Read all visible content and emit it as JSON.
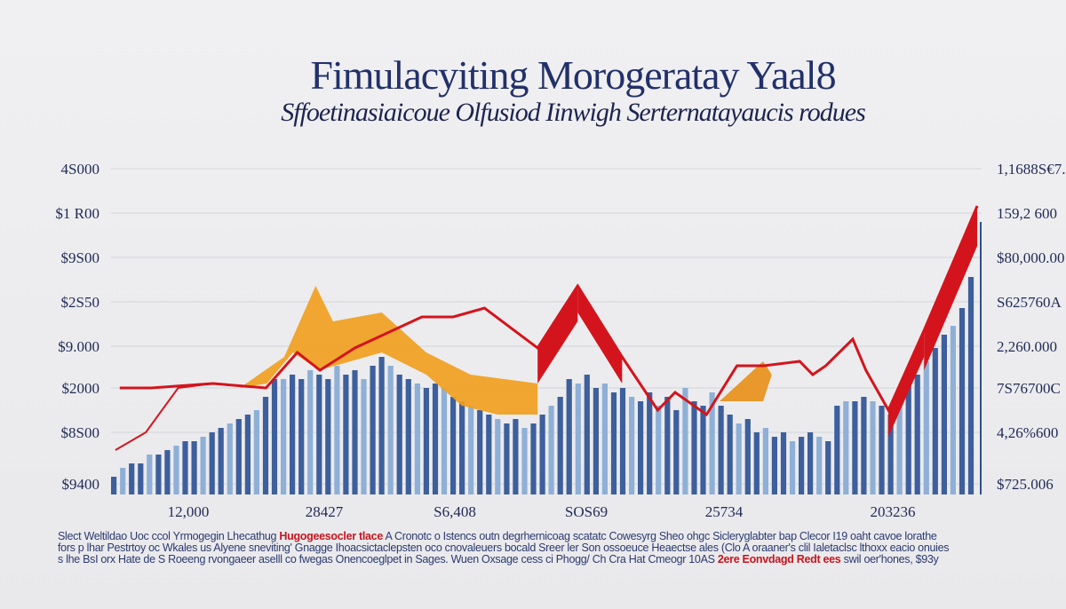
{
  "chart_data": {
    "type": "bar",
    "title": "Fimulacyiting Morogeratay Yaal8",
    "subtitle": "Sffoetinasiaicoue Olfusiod Iinwigh Serternatayaucis rodues",
    "left_ticks": [
      "4S000",
      "$1 R00",
      "$9S00",
      "$2S50",
      "$9.000",
      "$2000",
      "$8S00",
      "$9400"
    ],
    "right_ticks": [
      "1,1688S€7.3",
      "159,2 600",
      "$80,000.00",
      "S625760A",
      "2,260.000",
      "7S76700C",
      "4,26%600",
      "$725.006"
    ],
    "x_ticks": [
      "12,000",
      "28427",
      "S6,408",
      "SOS69",
      "25734",
      "203236"
    ],
    "xlim": [
      0,
      100
    ],
    "ylim": [
      0,
      7.4
    ],
    "grid": true,
    "colors": {
      "bar": "#3d5f9c",
      "bar_light": "#8fb0d6",
      "line": "#d4141c",
      "area": "#f0a020",
      "area_dark": "#e8901a"
    },
    "bars": [
      0.4,
      0.6,
      0.7,
      0.7,
      0.9,
      0.9,
      1.0,
      1.1,
      1.2,
      1.2,
      1.3,
      1.4,
      1.5,
      1.6,
      1.7,
      1.8,
      1.9,
      2.2,
      2.6,
      2.6,
      2.7,
      2.6,
      2.8,
      2.7,
      2.6,
      2.9,
      2.7,
      2.8,
      2.6,
      2.9,
      3.1,
      2.9,
      2.7,
      2.6,
      2.5,
      2.4,
      2.5,
      2.4,
      2.2,
      2.1,
      2.0,
      1.9,
      1.8,
      1.7,
      1.6,
      1.7,
      1.5,
      1.6,
      1.8,
      2.0,
      2.2,
      2.6,
      2.5,
      2.7,
      2.4,
      2.5,
      2.3,
      2.4,
      2.2,
      2.1,
      2.3,
      2.0,
      2.2,
      1.9,
      2.4,
      2.1,
      2.0,
      2.3,
      2.0,
      1.8,
      1.6,
      1.7,
      1.4,
      1.5,
      1.3,
      1.4,
      1.2,
      1.3,
      1.4,
      1.3,
      1.2,
      2.0,
      2.1,
      2.1,
      2.2,
      2.1,
      2.0,
      1.8,
      2.2,
      2.5,
      2.7,
      3.0,
      3.3,
      3.6,
      3.8,
      4.2,
      4.9
    ],
    "line": [
      [
        1,
        2.4
      ],
      [
        4.6,
        2.4
      ],
      [
        11.7,
        2.5
      ],
      [
        17.8,
        2.4
      ],
      [
        21.4,
        3.2
      ],
      [
        24,
        2.8
      ],
      [
        28,
        3.3
      ],
      [
        35.7,
        4.0
      ],
      [
        39.3,
        4.0
      ],
      [
        42.9,
        4.2
      ],
      [
        49,
        3.3
      ],
      [
        53.6,
        4.7
      ],
      [
        58.7,
        3.1
      ],
      [
        62.8,
        1.9
      ],
      [
        64.8,
        2.3
      ],
      [
        68.4,
        1.8
      ],
      [
        71.9,
        2.9
      ],
      [
        75,
        2.9
      ],
      [
        79.1,
        3.0
      ],
      [
        80.6,
        2.7
      ],
      [
        82.1,
        2.9
      ],
      [
        85.2,
        3.5
      ],
      [
        86.7,
        2.8
      ],
      [
        89.3,
        1.9
      ],
      [
        93.4,
        3.7
      ],
      [
        99.5,
        6.5
      ]
    ],
    "line2": [
      [
        0.5,
        1.0
      ],
      [
        4,
        1.4
      ],
      [
        7.7,
        2.4
      ],
      [
        11.7,
        2.5
      ]
    ],
    "areas": [
      [
        [
          14.8,
          2.4
        ],
        [
          19.9,
          3.1
        ],
        [
          23.5,
          4.7
        ],
        [
          25.5,
          3.9
        ],
        [
          31.1,
          4.1
        ],
        [
          36.2,
          3.2
        ],
        [
          41.3,
          2.7
        ],
        [
          49,
          2.5
        ],
        [
          49,
          1.8
        ],
        [
          44.4,
          1.8
        ],
        [
          40.3,
          2.0
        ],
        [
          36.2,
          2.7
        ],
        [
          31.1,
          3.2
        ],
        [
          23.9,
          2.8
        ],
        [
          20.9,
          3.2
        ],
        [
          17.9,
          2.5
        ]
      ],
      [
        [
          69.9,
          2.1
        ],
        [
          74.9,
          3.0
        ],
        [
          75.9,
          2.7
        ],
        [
          74.9,
          2.1
        ]
      ]
    ]
  },
  "footnote": {
    "line1_a": "Slect Weltildao Uoc ccol Yrmogegin Lhecathug",
    "line1_red": "Hugogeesocler tlace",
    "line1_b": "A Cronotc o Istencs outn degrhernicoag scatatc Cowesyrg Sheo ohgc Sicleryglabter bap Clecor  I19 oaht cavoe lorathe",
    "line2": "fors p lhar Pestrtoy oc Wkales  us Alyene sneviting' Gnagge Ihoacsictaclepsten oco cnovaleuers bocald  Sreer ler Son ossoeuce Heaectse ales (Clo A oraaner's clil Ialetaclsc lthoxx eacio onuies",
    "line3_a": "s lhe  BsI orx Hate de S Roeeng rvongaeer aselll  co fwegas Onencoeglpet  in Sages. Wuen Oxsage cess ci Phogg/ Ch Cra Hat Cmeogr 10AS",
    "line3_red": "2ere Eonvdagd Redt ees",
    "line3_b": "swil oer'hones, $93y"
  }
}
